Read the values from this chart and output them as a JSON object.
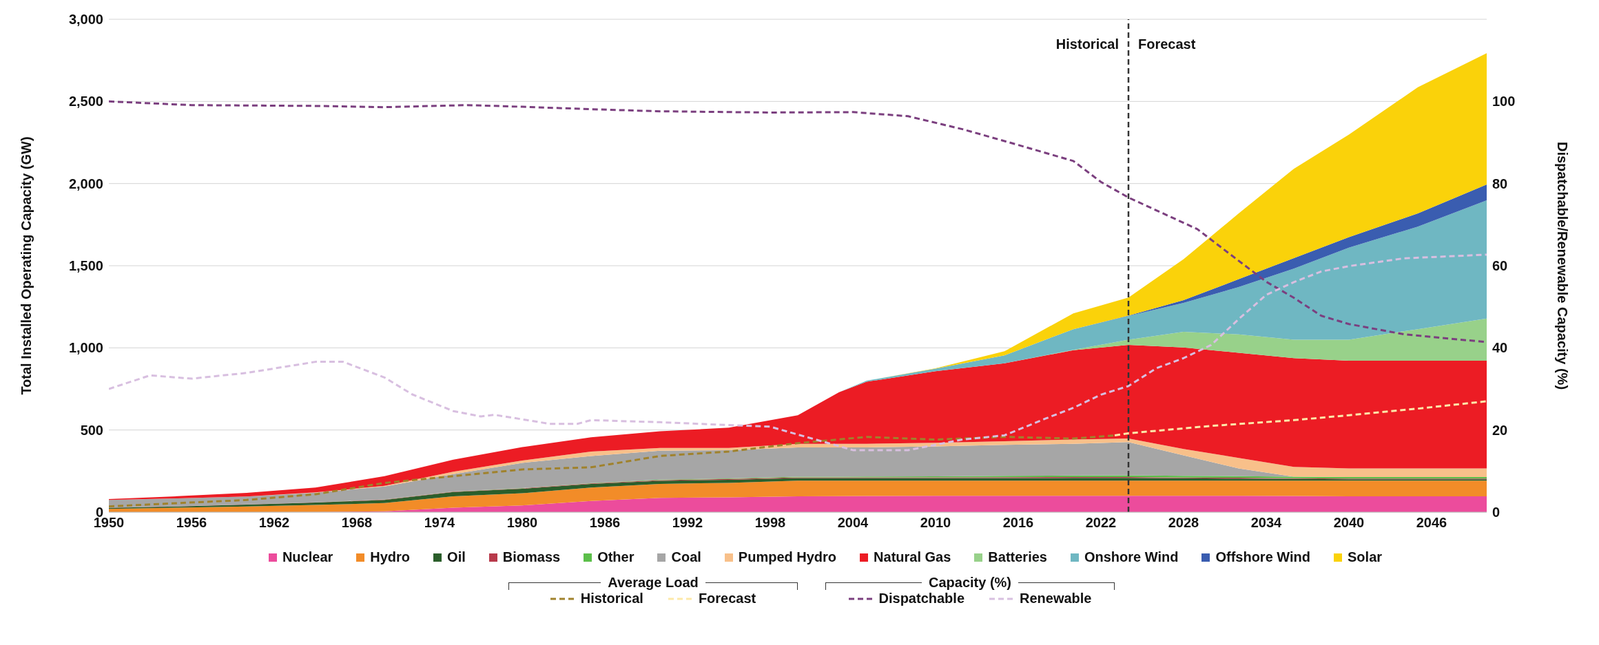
{
  "chart_data": {
    "type": "area",
    "stacked": true,
    "ylabel": "Total Installed Operating Capacity (GW)",
    "y2label": "Dispatchable/Renewable Capacity (%)",
    "x": [
      1950,
      1955,
      1960,
      1965,
      1970,
      1975,
      1980,
      1985,
      1990,
      1995,
      2000,
      2003,
      2005,
      2010,
      2015,
      2020,
      2024,
      2028,
      2032,
      2036,
      2040,
      2045,
      2050
    ],
    "xlim": [
      1950,
      2050
    ],
    "xticks": [
      1950,
      1956,
      1962,
      1968,
      1974,
      1980,
      1986,
      1992,
      1998,
      2004,
      2010,
      2016,
      2022,
      2028,
      2034,
      2040,
      2046
    ],
    "ylim": [
      0,
      3000
    ],
    "yticks": [
      {
        "value": 0,
        "label": "0"
      },
      {
        "value": 500,
        "label": "500"
      },
      {
        "value": 1000,
        "label": "1,000"
      },
      {
        "value": 1500,
        "label": "1,500"
      },
      {
        "value": 2000,
        "label": "2,000"
      },
      {
        "value": 2500,
        "label": "2,500"
      },
      {
        "value": 3000,
        "label": "3,000"
      }
    ],
    "y2lim": [
      0,
      120
    ],
    "y2ticks": [
      0,
      20,
      40,
      60,
      80,
      100
    ],
    "grid": "y",
    "legend": "bottom",
    "line_style": "dashed",
    "marker": "none",
    "ref_lines": [
      {
        "axis": "x",
        "value": 2024,
        "label": null,
        "color": "#333333",
        "line_style": "dashed"
      }
    ],
    "annotations": [
      "Average Load",
      "Capacity (%)",
      {
        "text": "Historical",
        "x": 2024,
        "y": 2850
      },
      {
        "text": "Forecast",
        "x": 2024,
        "y": 2850
      }
    ],
    "series": [
      {
        "name": "Nuclear",
        "color": "#ec4c9c",
        "values": [
          0,
          0,
          0,
          1,
          5,
          27,
          41,
          68,
          87,
          90,
          96,
          97,
          98,
          99,
          99,
          100,
          100,
          100,
          100,
          98,
          96,
          96,
          96
        ]
      },
      {
        "name": "Hydro",
        "color": "#f28c28",
        "values": [
          20,
          27,
          35,
          43,
          50,
          69,
          74,
          82,
          85,
          88,
          96,
          95,
          94,
          93,
          93,
          92,
          92,
          92,
          92,
          94,
          96,
          96,
          96
        ]
      },
      {
        "name": "Oil",
        "color": "#2b5e2b",
        "values": [
          6,
          8,
          11,
          15,
          19,
          27,
          27,
          22,
          19,
          19,
          15,
          15,
          15,
          15,
          15,
          16,
          16,
          14,
          12,
          10,
          8,
          8,
          8
        ]
      },
      {
        "name": "Biomass",
        "color": "#b83a4b",
        "values": [
          1,
          1,
          1,
          1,
          2,
          2,
          3,
          3,
          4,
          5,
          5,
          5,
          5,
          5,
          6,
          6,
          6,
          5,
          5,
          4,
          4,
          4,
          4
        ]
      },
      {
        "name": "Other",
        "color": "#5cbf4a",
        "values": [
          0,
          0,
          0,
          0,
          1,
          1,
          2,
          2,
          3,
          3,
          4,
          4,
          5,
          6,
          8,
          9,
          10,
          10,
          10,
          10,
          10,
          10,
          10
        ]
      },
      {
        "name": "Coal",
        "color": "#a6a6a6",
        "values": [
          47,
          48,
          48,
          58,
          79,
          106,
          153,
          165,
          176,
          172,
          178,
          178,
          177,
          182,
          189,
          193,
          202,
          125,
          47,
          0,
          0,
          0,
          0
        ]
      },
      {
        "name": "Pumped Hydro",
        "color": "#f8c08a",
        "values": [
          0,
          0,
          0,
          2,
          4,
          14,
          14,
          27,
          17,
          14,
          22,
          22,
          22,
          22,
          22,
          26,
          22,
          38,
          64,
          59,
          52,
          52,
          52
        ]
      },
      {
        "name": "Natural Gas",
        "color": "#ec1c24",
        "values": [
          6,
          13,
          22,
          30,
          59,
          74,
          82,
          87,
          101,
          123,
          174,
          314,
          378,
          436,
          474,
          544,
          570,
          618,
          640,
          663,
          656,
          656,
          656
        ]
      },
      {
        "name": "Batteries",
        "color": "#98d18a",
        "values": [
          0,
          0,
          0,
          0,
          0,
          0,
          0,
          0,
          0,
          0,
          0,
          0,
          0,
          0,
          0,
          2,
          32,
          96,
          112,
          112,
          128,
          192,
          256
        ]
      },
      {
        "name": "Onshore Wind",
        "color": "#6fb7c2",
        "values": [
          0,
          0,
          0,
          0,
          0,
          0,
          0,
          0,
          0,
          0,
          0,
          0,
          6,
          16,
          48,
          126,
          144,
          176,
          288,
          432,
          560,
          624,
          720
        ]
      },
      {
        "name": "Offshore Wind",
        "color": "#3a5db0",
        "values": [
          0,
          0,
          0,
          0,
          0,
          0,
          0,
          0,
          0,
          0,
          0,
          0,
          0,
          0,
          0,
          0,
          2,
          16,
          48,
          64,
          64,
          80,
          96
        ]
      },
      {
        "name": "Solar",
        "color": "#fad20a",
        "values": [
          0,
          0,
          0,
          0,
          0,
          0,
          0,
          0,
          0,
          0,
          0,
          0,
          0,
          2,
          25,
          96,
          110,
          250,
          400,
          544,
          624,
          768,
          800
        ]
      },
      {
        "name": "Historical",
        "type": "line",
        "axis": "y",
        "color": "#a0822c",
        "x": [
          1950,
          1955,
          1960,
          1965,
          1970,
          1975,
          1980,
          1985,
          1990,
          1995,
          2000,
          2005,
          2010,
          2015,
          2020,
          2023
        ],
        "values": [
          35,
          55,
          74,
          109,
          178,
          219,
          260,
          273,
          342,
          369,
          420,
          458,
          442,
          458,
          448,
          467
        ]
      },
      {
        "name": "Forecast",
        "type": "line",
        "axis": "y",
        "color": "#fde9a9",
        "x": [
          2023,
          2024,
          2030,
          2036,
          2040,
          2045,
          2050
        ],
        "values": [
          467,
          480,
          525,
          560,
          590,
          630,
          675
        ]
      },
      {
        "name": "Dispatchable",
        "type": "line",
        "axis": "y2",
        "color": "#7b3f7f",
        "x": [
          1950,
          1956,
          1965,
          1970,
          1976,
          1980,
          1985,
          1990,
          1998,
          2004,
          2008,
          2012,
          2016,
          2020,
          2022,
          2024,
          2029,
          2032,
          2034,
          2036,
          2038,
          2040,
          2044,
          2050
        ],
        "values": [
          100,
          99.1,
          98.9,
          98.6,
          99.1,
          98.7,
          98.1,
          97.6,
          97.3,
          97.4,
          96.4,
          93.2,
          89.4,
          85.5,
          80.4,
          76.6,
          68.9,
          61.2,
          56.1,
          52.2,
          47.8,
          45.8,
          43.3,
          41.4
        ]
      },
      {
        "name": "Renewable",
        "type": "line",
        "axis": "y2",
        "color": "#d8bfe0",
        "x": [
          1950,
          1953,
          1956,
          1960,
          1965,
          1967,
          1970,
          1972,
          1975,
          1977,
          1978,
          1982,
          1984,
          1985,
          1990,
          1995,
          1998,
          2002,
          2004,
          2008,
          2012,
          2015,
          2018,
          2020,
          2022,
          2024,
          2026,
          2028,
          2030,
          2032,
          2034,
          2036,
          2038,
          2040,
          2044,
          2050
        ],
        "values": [
          30,
          33.3,
          32.5,
          33.9,
          36.6,
          36.6,
          32.8,
          28.7,
          24.6,
          23.3,
          23.7,
          21.5,
          21.5,
          22.4,
          21.9,
          21.2,
          20.8,
          17,
          15.1,
          15.1,
          17.7,
          18.7,
          22.8,
          25.4,
          28.6,
          30.7,
          35,
          37.5,
          40.7,
          47,
          52.9,
          56,
          58.6,
          59.9,
          61.8,
          62.7
        ]
      }
    ]
  }
}
